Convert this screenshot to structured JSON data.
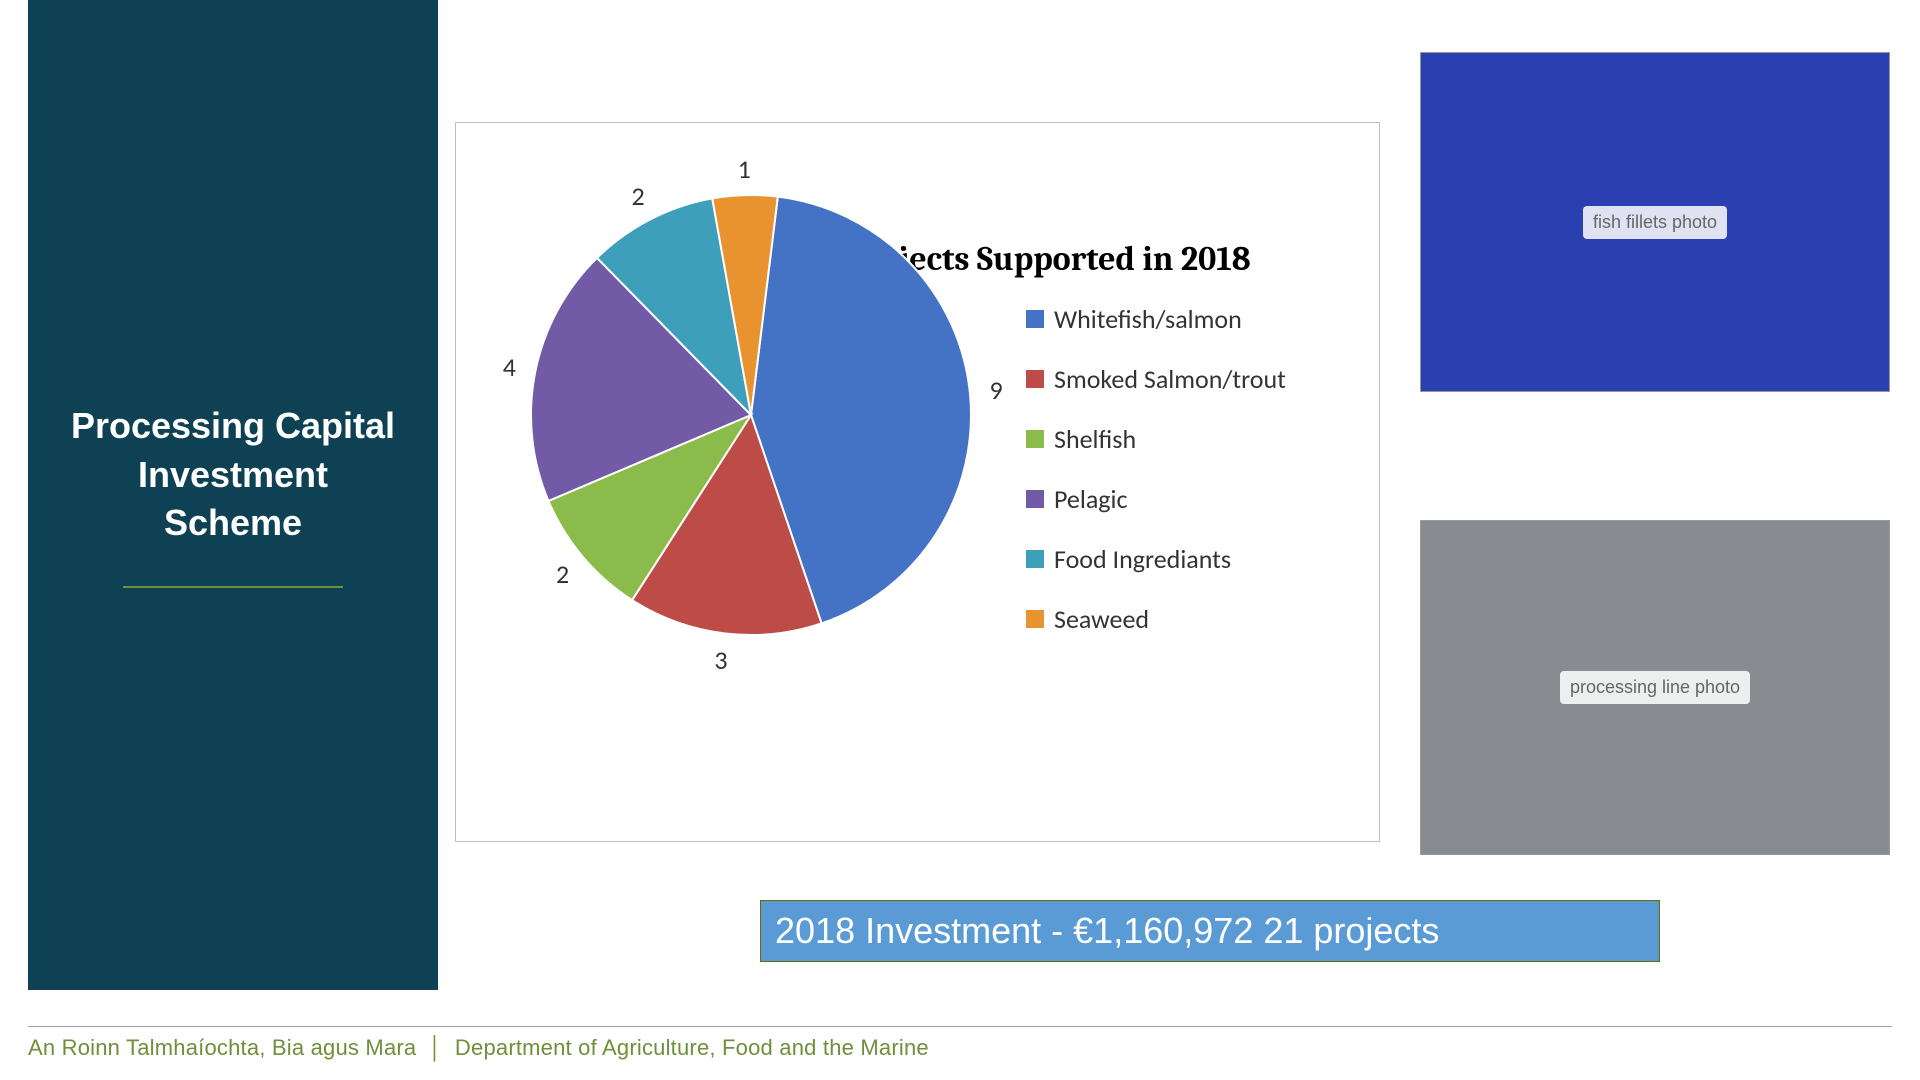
{
  "sidebar": {
    "title_line1": "Processing Capital",
    "title_line2": "Investment",
    "title_line3": "Scheme",
    "bg_color": "#0d4153",
    "rule_color": "#6f8f3b",
    "text_color": "#ffffff"
  },
  "chart": {
    "type": "pie",
    "title": "Projects Supported in 2018",
    "title_fontfamily": "Cambria",
    "title_fontsize": 34,
    "panel_border_color": "#bfbfbf",
    "background_color": "#ffffff",
    "start_angle_deg": 7,
    "slices": [
      {
        "label": "Whitefish/salmon",
        "value": 9,
        "color": "#4472c4"
      },
      {
        "label": "Smoked Salmon/trout",
        "value": 3,
        "color": "#bd4b48"
      },
      {
        "label": "Shelfish",
        "value": 2,
        "color": "#8bbb4a"
      },
      {
        "label": "Pelagic",
        "value": 4,
        "color": "#735aa6"
      },
      {
        "label": "Food Ingrediants",
        "value": 2,
        "color": "#3d9fba"
      },
      {
        "label": "Seaweed",
        "value": 1,
        "color": "#e8932f"
      }
    ],
    "slice_stroke": "#ffffff",
    "slice_stroke_width": 2,
    "data_label_fontsize": 26,
    "data_label_color": "#333333",
    "legend_fontsize": 26,
    "legend_fontfamily": "Calibri",
    "legend_marker_size": 18
  },
  "images": {
    "top": {
      "placeholder_text": "fish fillets photo",
      "bg": "#2a3fb0"
    },
    "bottom": {
      "placeholder_text": "processing line photo",
      "bg": "#888c90"
    }
  },
  "investment_bar": {
    "text": "2018 Investment - €1,160,972 21 projects",
    "bg_color": "#5b9bd5",
    "border_color": "#6a6a00",
    "text_color": "#ffffff",
    "fontsize": 36
  },
  "footer": {
    "left": "An Roinn Talmhaíochta, Bia agus Mara",
    "right": "Department of Agriculture, Food and the Marine",
    "color": "#6f8f3b",
    "rule_color": "#9aa39a",
    "fontsize": 22
  }
}
